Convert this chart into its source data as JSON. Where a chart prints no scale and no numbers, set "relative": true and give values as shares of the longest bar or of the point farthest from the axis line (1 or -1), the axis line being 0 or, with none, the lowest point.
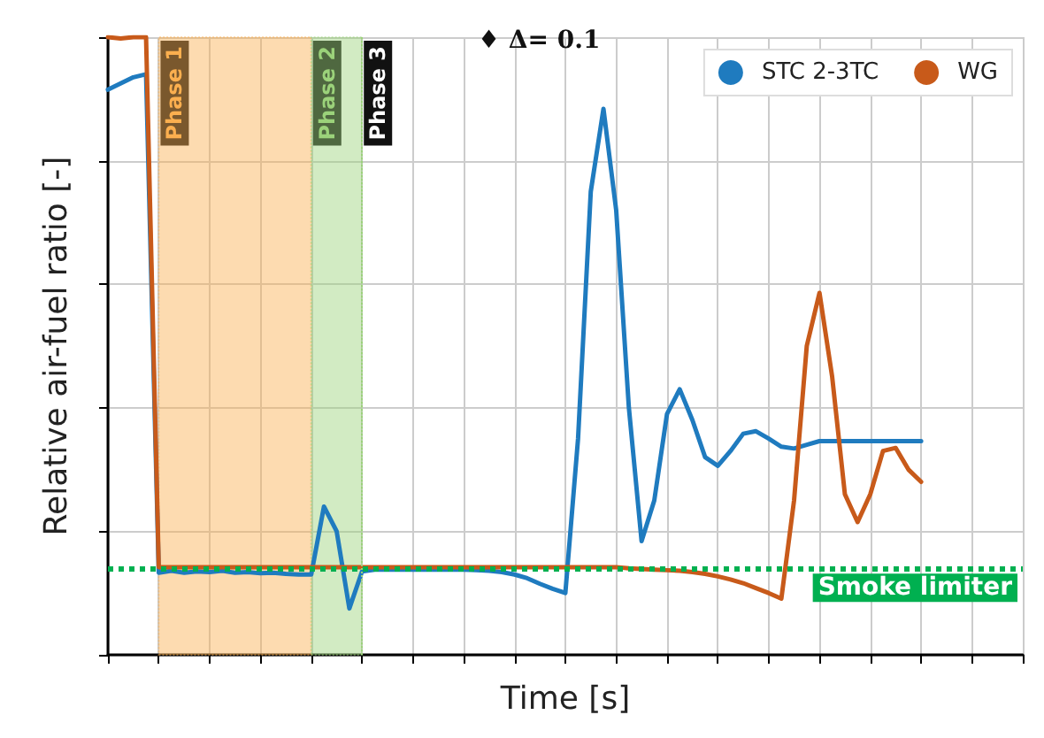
{
  "chart_data": {
    "type": "line",
    "relative": true,
    "xlabel": "Time [s]",
    "ylabel": "Relative air-fuel ratio [-]",
    "categories": [
      null,
      null,
      null,
      null,
      null,
      null,
      null,
      null,
      null,
      null,
      null,
      null,
      null,
      null,
      null,
      null,
      null,
      null,
      null,
      null,
      null,
      null,
      null,
      null,
      null,
      null,
      null,
      null,
      null,
      null,
      null,
      null,
      null,
      null,
      null,
      null,
      null,
      null,
      null,
      null,
      null,
      null,
      null,
      null,
      null,
      null,
      null,
      null,
      null,
      null,
      null,
      null,
      null,
      null,
      null,
      null,
      null,
      null,
      null,
      null,
      null,
      null,
      null,
      null,
      null,
      null,
      null,
      null,
      null,
      null,
      null,
      null,
      null
    ],
    "series": [
      {
        "name": "STC 2-3TC",
        "color": "#1f7bbf",
        "values": [
          0.915,
          0.925,
          0.935,
          0.94,
          0.133,
          0.136,
          0.133,
          0.135,
          0.134,
          0.136,
          0.133,
          0.134,
          0.132,
          0.133,
          0.131,
          0.13,
          0.13,
          0.24,
          0.2,
          0.075,
          0.135,
          0.138,
          0.138,
          0.138,
          0.138,
          0.138,
          0.138,
          0.138,
          0.138,
          0.137,
          0.136,
          0.134,
          0.13,
          0.124,
          0.115,
          0.107,
          0.1,
          0.35,
          0.75,
          0.884,
          0.72,
          0.4,
          0.184,
          0.25,
          0.39,
          0.43,
          0.38,
          0.32,
          0.306,
          0.33,
          0.358,
          0.362,
          0.35,
          0.337,
          0.334,
          0.34,
          0.346,
          0.346,
          0.346,
          0.346,
          0.346,
          0.346,
          0.346,
          0.346,
          0.346,
          null,
          null,
          null,
          null,
          null,
          null,
          null,
          null
        ]
      },
      {
        "name": "WG",
        "color": "#c85a1a",
        "values": [
          1.0,
          0.998,
          1.0,
          1.0,
          0.142,
          0.142,
          0.142,
          0.142,
          0.142,
          0.142,
          0.142,
          0.142,
          0.142,
          0.142,
          0.142,
          0.142,
          0.142,
          0.142,
          0.142,
          0.142,
          0.142,
          0.142,
          0.142,
          0.142,
          0.142,
          0.142,
          0.142,
          0.142,
          0.142,
          0.142,
          0.142,
          0.142,
          0.142,
          0.142,
          0.142,
          0.142,
          0.142,
          0.142,
          0.142,
          0.142,
          0.142,
          0.14,
          0.139,
          0.138,
          0.137,
          0.136,
          0.134,
          0.131,
          0.127,
          0.122,
          0.116,
          0.108,
          0.1,
          0.091,
          0.25,
          0.5,
          0.586,
          0.45,
          0.26,
          0.215,
          0.26,
          0.33,
          0.335,
          0.3,
          0.28,
          null,
          null,
          null,
          null,
          null,
          null,
          null,
          null
        ]
      }
    ],
    "ref_lines": [
      {
        "axis": "y",
        "value": 0.142,
        "label": "Smoke limiter",
        "color": "#00b050",
        "line_style": "dotted"
      }
    ],
    "annotations": [
      "♦ Δ= 0.1",
      "Phase 1",
      "Phase 2",
      "Phase 3"
    ],
    "grid": true,
    "legend": "top right",
    "line_style": "solid"
  }
}
